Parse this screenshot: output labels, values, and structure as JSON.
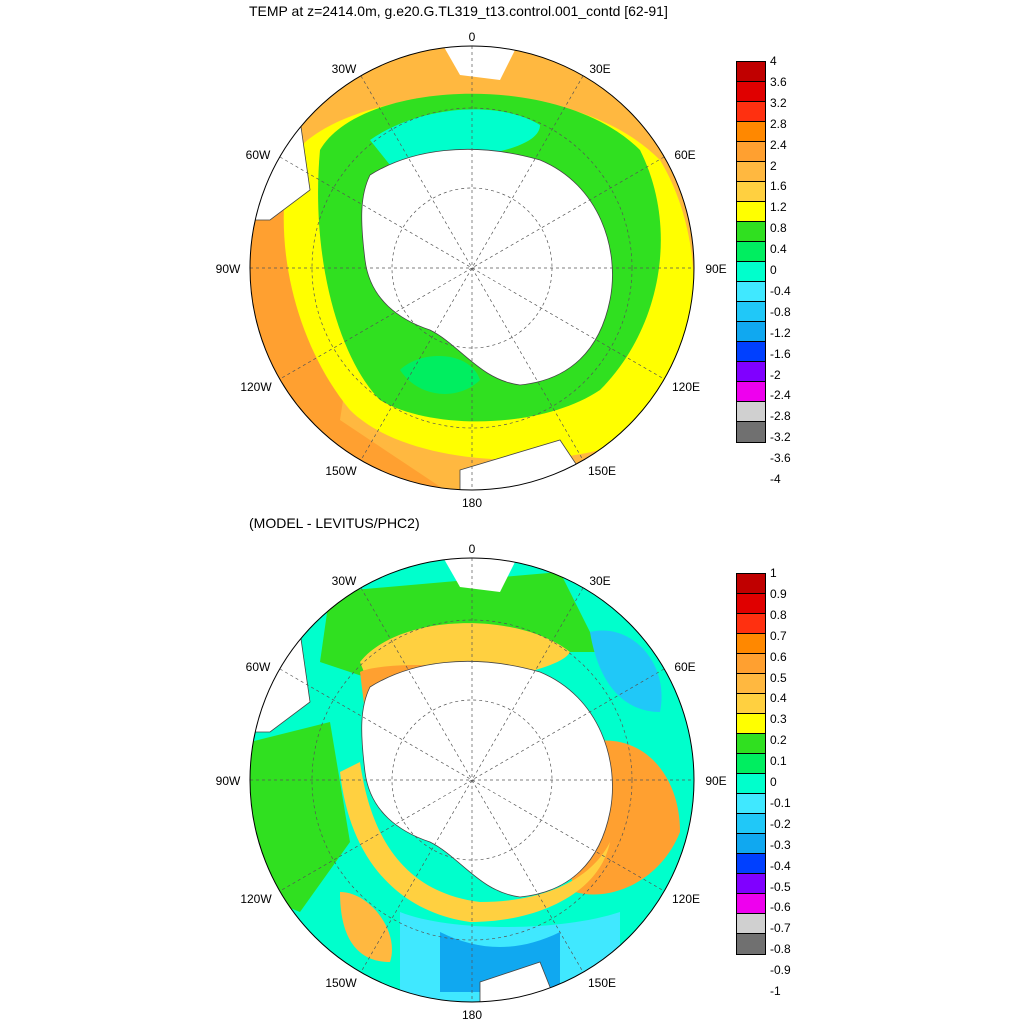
{
  "titles": {
    "top": "TEMP at z=2414.0m, g.e20.G.TL319_t13.control.001_contd [62-91]",
    "bottom": "(MODEL - LEVITUS/PHC2)"
  },
  "longitude_labels": {
    "n0": "0",
    "e30": "30E",
    "e60": "60E",
    "e90": "90E",
    "e120": "120E",
    "e150": "150E",
    "s180": "180",
    "w150": "150W",
    "w120": "120W",
    "w90": "90W",
    "w60": "60W",
    "w30": "30W"
  },
  "colorbar_top": {
    "labels": [
      "4",
      "3.6",
      "3.2",
      "2.8",
      "2.4",
      "2",
      "1.6",
      "1.2",
      "0.8",
      "0.4",
      "0",
      "-0.4",
      "-0.8",
      "-1.2",
      "-1.6",
      "-2",
      "-2.4",
      "-2.8",
      "-3.2",
      "-3.6",
      "-4"
    ],
    "colors": [
      "#c00000",
      "#e00000",
      "#ff3010",
      "#ff8800",
      "#ffa030",
      "#ffb840",
      "#ffd040",
      "#ffff00",
      "#30e020",
      "#00ee60",
      "#00ffcc",
      "#40e8ff",
      "#20c8f8",
      "#10a8f0",
      "#0040ff",
      "#8000ff",
      "#ee00ee",
      "#d0d0d0",
      "#707070"
    ]
  },
  "colorbar_bottom": {
    "labels": [
      "1",
      "0.9",
      "0.8",
      "0.7",
      "0.6",
      "0.5",
      "0.4",
      "0.3",
      "0.2",
      "0.1",
      "0",
      "-0.1",
      "-0.2",
      "-0.3",
      "-0.4",
      "-0.5",
      "-0.6",
      "-0.7",
      "-0.8",
      "-0.9",
      "-1"
    ],
    "colors": [
      "#c00000",
      "#e00000",
      "#ff3010",
      "#ff8800",
      "#ffa030",
      "#ffb840",
      "#ffd040",
      "#ffff00",
      "#30e020",
      "#00ee60",
      "#00ffcc",
      "#40e8ff",
      "#20c8f8",
      "#10a8f0",
      "#0040ff",
      "#8000ff",
      "#ee00ee",
      "#d0d0d0",
      "#707070"
    ]
  }
}
